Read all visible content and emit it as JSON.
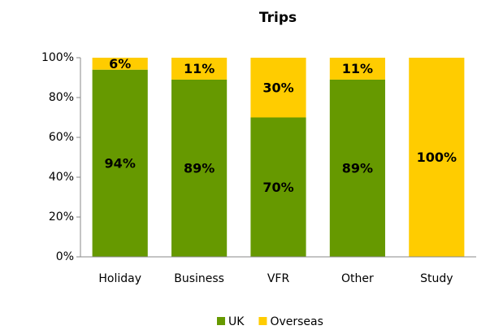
{
  "chart_data": {
    "type": "stacked_bar",
    "title": "Trips",
    "categories": [
      "Holiday",
      "Business",
      "VFR",
      "Other",
      "Study"
    ],
    "series": [
      {
        "name": "UK",
        "color": "#669900",
        "values": [
          94,
          89,
          70,
          89,
          0
        ],
        "value_labels": [
          "94%",
          "89%",
          "70%",
          "89%",
          null
        ]
      },
      {
        "name": "Overseas",
        "color": "#ffcc00",
        "values": [
          6,
          11,
          30,
          11,
          100
        ],
        "value_labels": [
          "6%",
          "11%",
          "30%",
          "11%",
          "100%"
        ]
      }
    ],
    "ylim": [
      0,
      100
    ],
    "yticks": [
      {
        "value": 0,
        "label": "0%"
      },
      {
        "value": 20,
        "label": "20%"
      },
      {
        "value": 40,
        "label": "40%"
      },
      {
        "value": 60,
        "label": "60%"
      },
      {
        "value": 80,
        "label": "80%"
      },
      {
        "value": 100,
        "label": "100%"
      }
    ],
    "legend": "bottom"
  }
}
